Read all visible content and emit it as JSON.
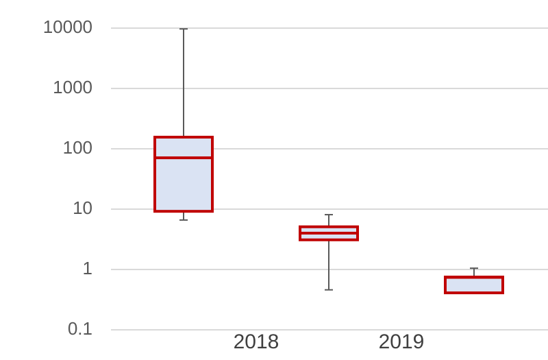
{
  "chart_data": {
    "type": "box",
    "log_scale": true,
    "grid": true,
    "categories": [
      null,
      null,
      null
    ],
    "x_labels": [
      "2018",
      "2019"
    ],
    "boxes": [
      {
        "min": 6.6,
        "q1": 9.2,
        "median": 71,
        "q3": 156,
        "max": 9700
      },
      {
        "min": 0.46,
        "q1": 3.1,
        "median": 4.0,
        "q3": 5.1,
        "max": 8.1
      },
      {
        "min": 0.41,
        "q1": 0.41,
        "median": 0.74,
        "q3": 0.75,
        "max": 1.05
      }
    ],
    "box_fill": "#dae3f3",
    "box_stroke": "#c00000",
    "whisker_color": "#595959",
    "ylim": [
      0.1,
      10000
    ],
    "yticks": [
      0.1,
      1,
      10,
      100,
      1000,
      10000
    ]
  }
}
